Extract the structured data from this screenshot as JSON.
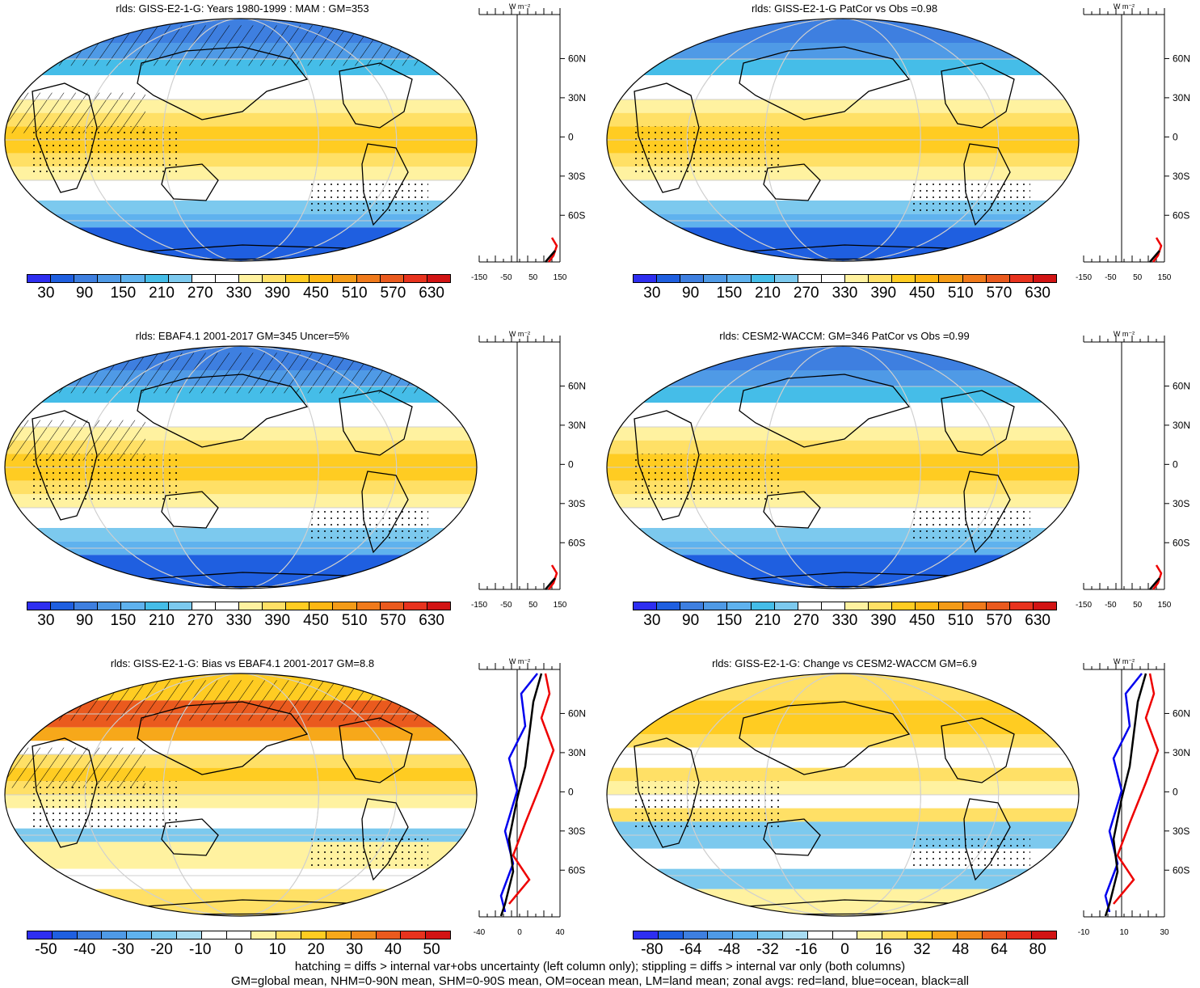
{
  "palettes": {
    "abs": [
      "#2e2ef0",
      "#1f5fe0",
      "#3e7fe0",
      "#4f9ae6",
      "#5fb2ee",
      "#45bde8",
      "#7cc9ee",
      "#ffffff",
      "#ffffff",
      "#fff2a0",
      "#ffe066",
      "#ffcc22",
      "#fdb713",
      "#f49b17",
      "#f07a1b",
      "#ea5a1e",
      "#e8331e",
      "#d21414"
    ],
    "diff": [
      "#2e2ef0",
      "#1f5fe0",
      "#3e7fe0",
      "#4f9ae6",
      "#5fb2ee",
      "#7cc9ee",
      "#a8dcf2",
      "#ffffff",
      "#ffffff",
      "#fff2a0",
      "#ffe066",
      "#ffcc22",
      "#f7a81a",
      "#f08a1b",
      "#ea5a1e",
      "#e8331e",
      "#d21414"
    ]
  },
  "panels": [
    {
      "title": "rlds: GISS-E2-1-G: Years 1980-1999 : MAM : GM=353",
      "palette": "abs",
      "cbar_labels": [
        "30",
        "90",
        "150",
        "210",
        "270",
        "330",
        "390",
        "450",
        "510",
        "570",
        "630"
      ],
      "zonal_ticks": [
        "-150",
        "-50",
        "50",
        "150"
      ],
      "zonal_unit": "W m⁻²",
      "lat_labels": [
        "60N",
        "30N",
        "0",
        "30S",
        "60S"
      ],
      "hatching": true,
      "style": "abs"
    },
    {
      "title": "rlds: GISS-E2-1-G PatCor vs Obs =0.98",
      "palette": "abs",
      "cbar_labels": [
        "30",
        "90",
        "150",
        "210",
        "270",
        "330",
        "390",
        "450",
        "510",
        "570",
        "630"
      ],
      "zonal_ticks": [
        "-150",
        "-50",
        "50",
        "150"
      ],
      "zonal_unit": "W m⁻²",
      "lat_labels": [
        "60N",
        "30N",
        "0",
        "30S",
        "60S"
      ],
      "hatching": false,
      "style": "abs"
    },
    {
      "title": "rlds: EBAF4.1 2001-2017 GM=345 Uncer=5%",
      "palette": "abs",
      "cbar_labels": [
        "30",
        "90",
        "150",
        "210",
        "270",
        "330",
        "390",
        "450",
        "510",
        "570",
        "630"
      ],
      "zonal_ticks": [
        "-150",
        "-50",
        "50",
        "150"
      ],
      "zonal_unit": "W m⁻²",
      "lat_labels": [
        "60N",
        "30N",
        "0",
        "30S",
        "60S"
      ],
      "hatching": true,
      "style": "abs"
    },
    {
      "title": "rlds: CESM2-WACCM: GM=346 PatCor vs Obs =0.99",
      "palette": "abs",
      "cbar_labels": [
        "30",
        "90",
        "150",
        "210",
        "270",
        "330",
        "390",
        "450",
        "510",
        "570",
        "630"
      ],
      "zonal_ticks": [
        "-150",
        "-50",
        "50",
        "150"
      ],
      "zonal_unit": "W m⁻²",
      "lat_labels": [
        "60N",
        "30N",
        "0",
        "30S",
        "60S"
      ],
      "hatching": false,
      "style": "abs"
    },
    {
      "title": "rlds: GISS-E2-1-G: Bias vs EBAF4.1 2001-2017 GM=8.8",
      "palette": "diff",
      "cbar_labels": [
        "-50",
        "-40",
        "-30",
        "-20",
        "-10",
        "0",
        "10",
        "20",
        "30",
        "40",
        "50"
      ],
      "zonal_ticks": [
        "-40",
        "0",
        "40"
      ],
      "zonal_unit": "W m⁻²",
      "lat_labels": [
        "60N",
        "30N",
        "0",
        "30S",
        "60S"
      ],
      "hatching": true,
      "style": "bias"
    },
    {
      "title": "rlds: GISS-E2-1-G: Change vs CESM2-WACCM GM=6.9",
      "palette": "diff",
      "cbar_labels": [
        "-80",
        "-64",
        "-48",
        "-32",
        "-16",
        "0",
        "16",
        "32",
        "48",
        "64",
        "80"
      ],
      "zonal_ticks": [
        "-10",
        "10",
        "30"
      ],
      "zonal_unit": "W m⁻²",
      "lat_labels": [
        "60N",
        "30N",
        "0",
        "30S",
        "60S"
      ],
      "hatching": false,
      "style": "change"
    }
  ],
  "footer": {
    "line1": "hatching = diffs > internal var+obs uncertainty (left column only); stippling = diffs > internal var only (both columns)",
    "line2": "GM=global mean, NHM=0-90N mean, SHM=0-90S mean, OM=ocean mean, LM=land mean; zonal avgs: red=land, blue=ocean, black=all"
  }
}
